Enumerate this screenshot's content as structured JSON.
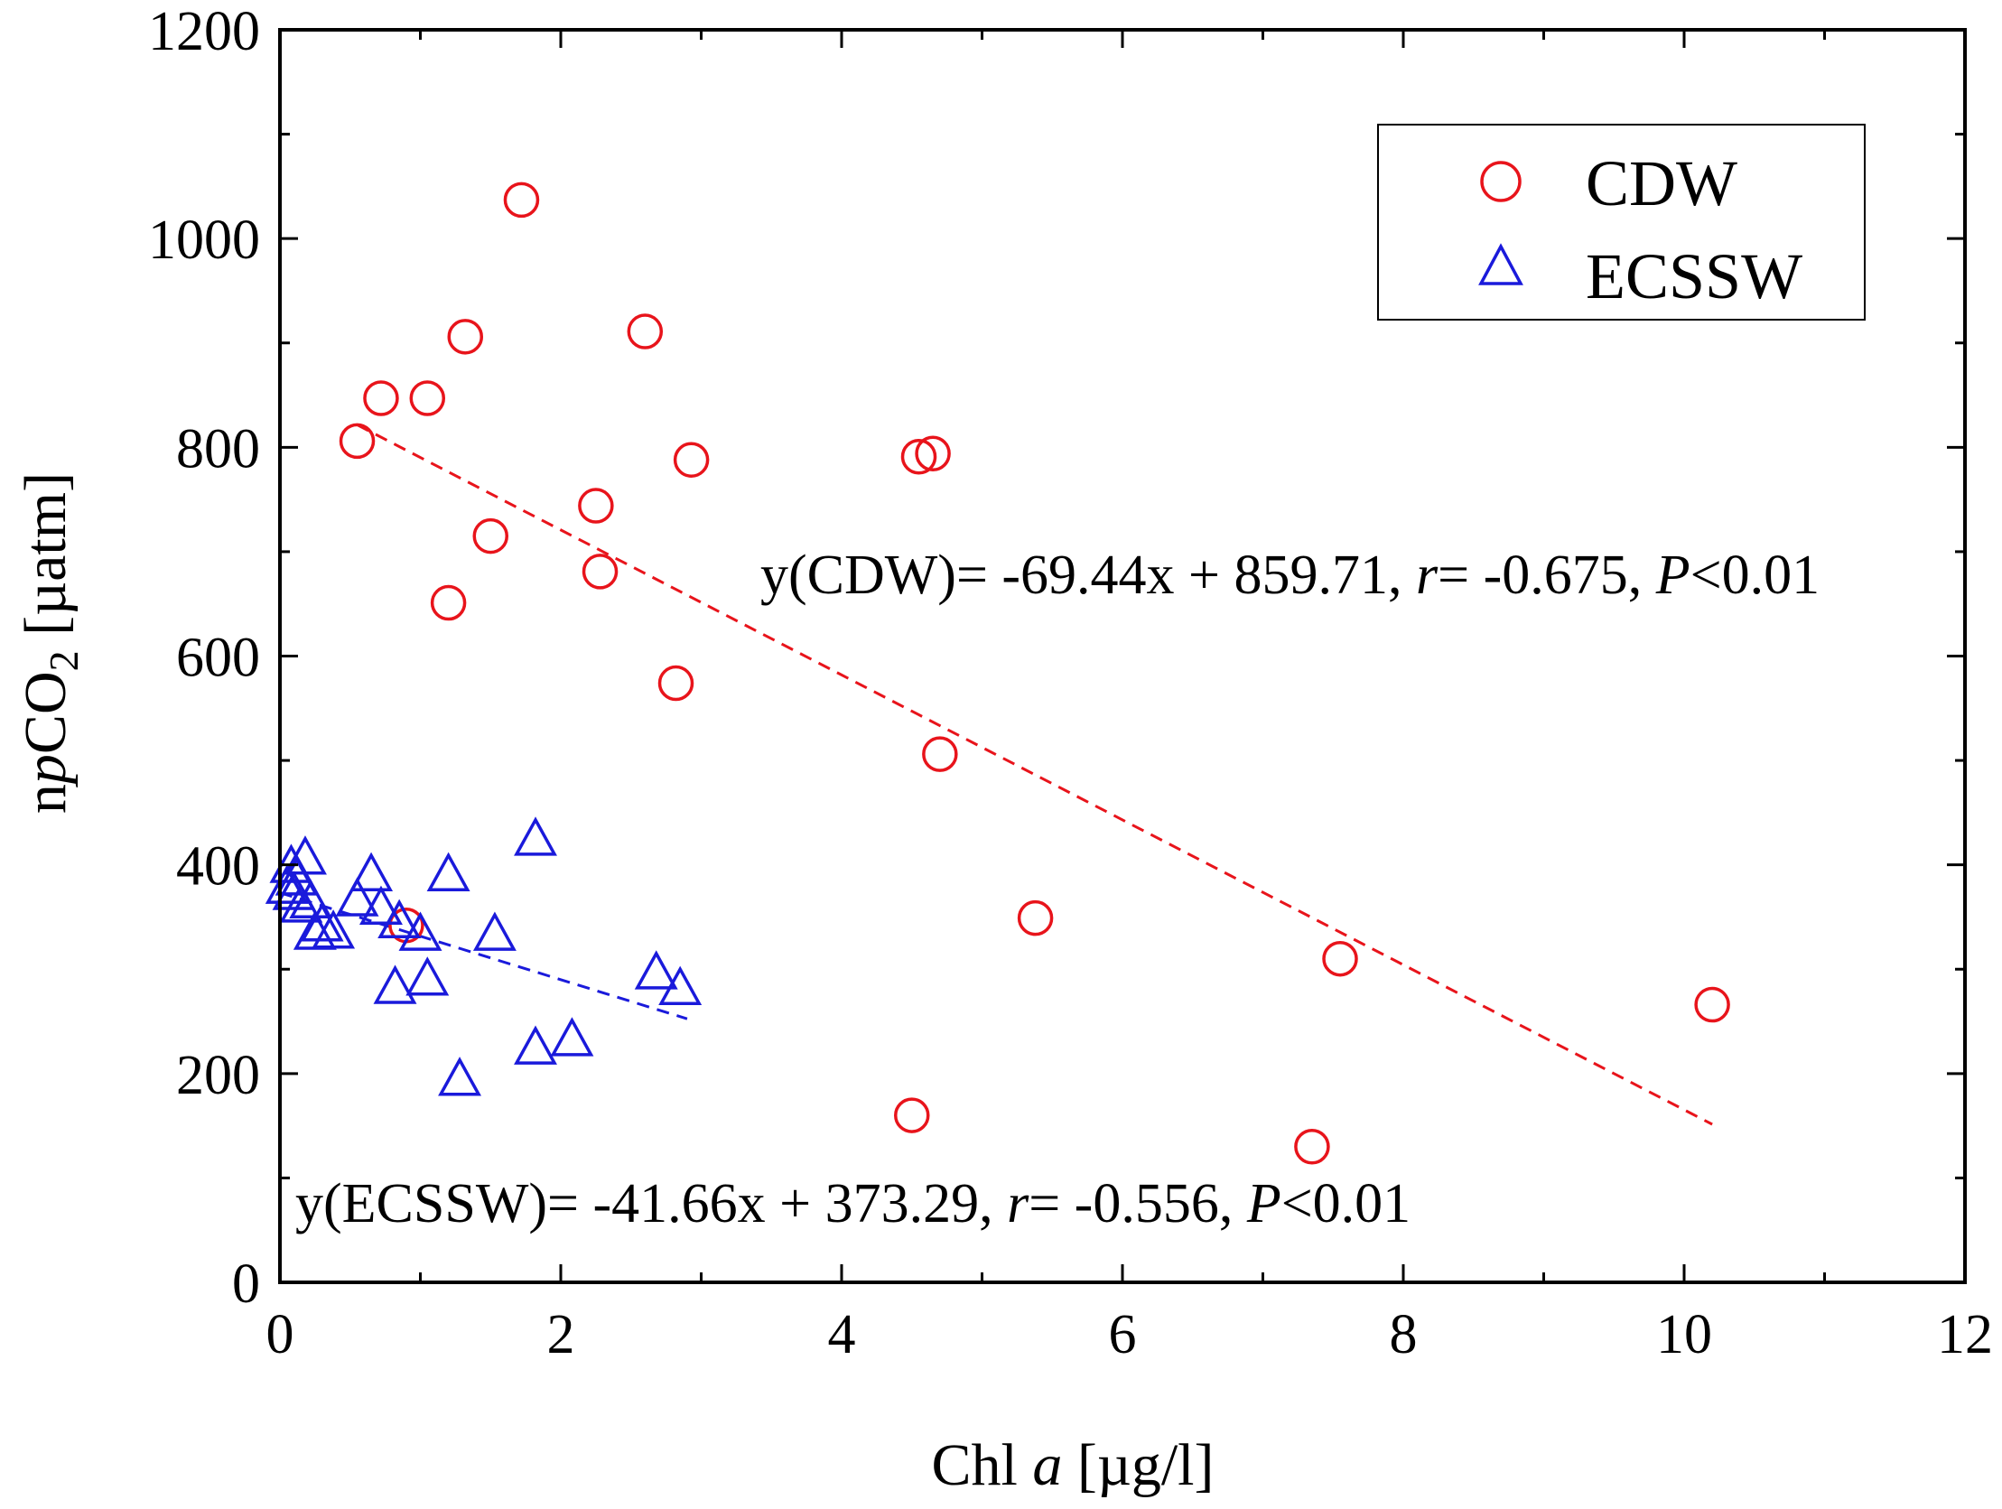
{
  "chart_data": {
    "type": "scatter",
    "title": "",
    "xlabel": {
      "main": "Chl ",
      "italic": "a",
      "unit": " [µg/l]"
    },
    "ylabel": {
      "prefix": "n",
      "italic": "p",
      "main": "CO",
      "sub": "2",
      "unit": " [µatm]"
    },
    "xlim": [
      0,
      12
    ],
    "ylim": [
      0,
      1200
    ],
    "x_ticks": [
      0,
      2,
      4,
      6,
      8,
      10,
      12
    ],
    "y_ticks": [
      0,
      200,
      400,
      600,
      800,
      1000,
      1200
    ],
    "x_tick_labels": [
      "0",
      "2",
      "4",
      "6",
      "8",
      "10",
      "12"
    ],
    "y_tick_labels": [
      "0",
      "200",
      "400",
      "600",
      "800",
      "1000",
      "1200"
    ],
    "legend_position": "top-right",
    "series": [
      {
        "name": "CDW",
        "marker": "circle",
        "color": "#e8141b",
        "points": [
          [
            0.55,
            806
          ],
          [
            0.72,
            847
          ],
          [
            1.05,
            847
          ],
          [
            1.32,
            906
          ],
          [
            1.72,
            1037
          ],
          [
            2.6,
            911
          ],
          [
            2.93,
            788
          ],
          [
            4.55,
            791
          ],
          [
            4.65,
            794
          ],
          [
            2.25,
            744
          ],
          [
            1.5,
            715
          ],
          [
            1.2,
            651
          ],
          [
            2.28,
            681
          ],
          [
            2.82,
            574
          ],
          [
            4.7,
            506
          ],
          [
            0.9,
            342
          ],
          [
            5.38,
            349
          ],
          [
            7.55,
            310
          ],
          [
            10.2,
            266
          ],
          [
            4.5,
            160
          ],
          [
            7.35,
            130
          ]
        ],
        "fit": {
          "slope": -69.44,
          "intercept": 859.71,
          "x_range": [
            0.55,
            10.2
          ]
        },
        "equation": {
          "prefix": "y(CDW)= -69.44x + 859.71, ",
          "r_sym": "r",
          "r_val": "= -0.675, ",
          "p_sym": "P",
          "p_val": "<0.01"
        }
      },
      {
        "name": "ECSSW",
        "marker": "triangle",
        "color": "#1a1adb",
        "points": [
          [
            0.08,
            398
          ],
          [
            0.18,
            406
          ],
          [
            0.12,
            386
          ],
          [
            0.1,
            372
          ],
          [
            0.15,
            360
          ],
          [
            0.05,
            378
          ],
          [
            0.22,
            364
          ],
          [
            0.25,
            334
          ],
          [
            0.38,
            335
          ],
          [
            0.3,
            342
          ],
          [
            0.55,
            366
          ],
          [
            0.65,
            390
          ],
          [
            0.72,
            358
          ],
          [
            0.85,
            345
          ],
          [
            1.0,
            333
          ],
          [
            1.2,
            390
          ],
          [
            1.53,
            333
          ],
          [
            1.82,
            424
          ],
          [
            0.82,
            282
          ],
          [
            1.05,
            290
          ],
          [
            1.28,
            194
          ],
          [
            1.82,
            224
          ],
          [
            2.08,
            232
          ],
          [
            2.68,
            296
          ],
          [
            2.85,
            281
          ]
        ],
        "fit": {
          "slope": -41.66,
          "intercept": 373.29,
          "x_range": [
            0.0,
            2.9
          ]
        },
        "equation": {
          "prefix": "y(ECSSW)= -41.66x + 373.29, ",
          "r_sym": "r",
          "r_val": "= -0.556, ",
          "p_sym": "P",
          "p_val": "<0.01"
        }
      }
    ]
  }
}
